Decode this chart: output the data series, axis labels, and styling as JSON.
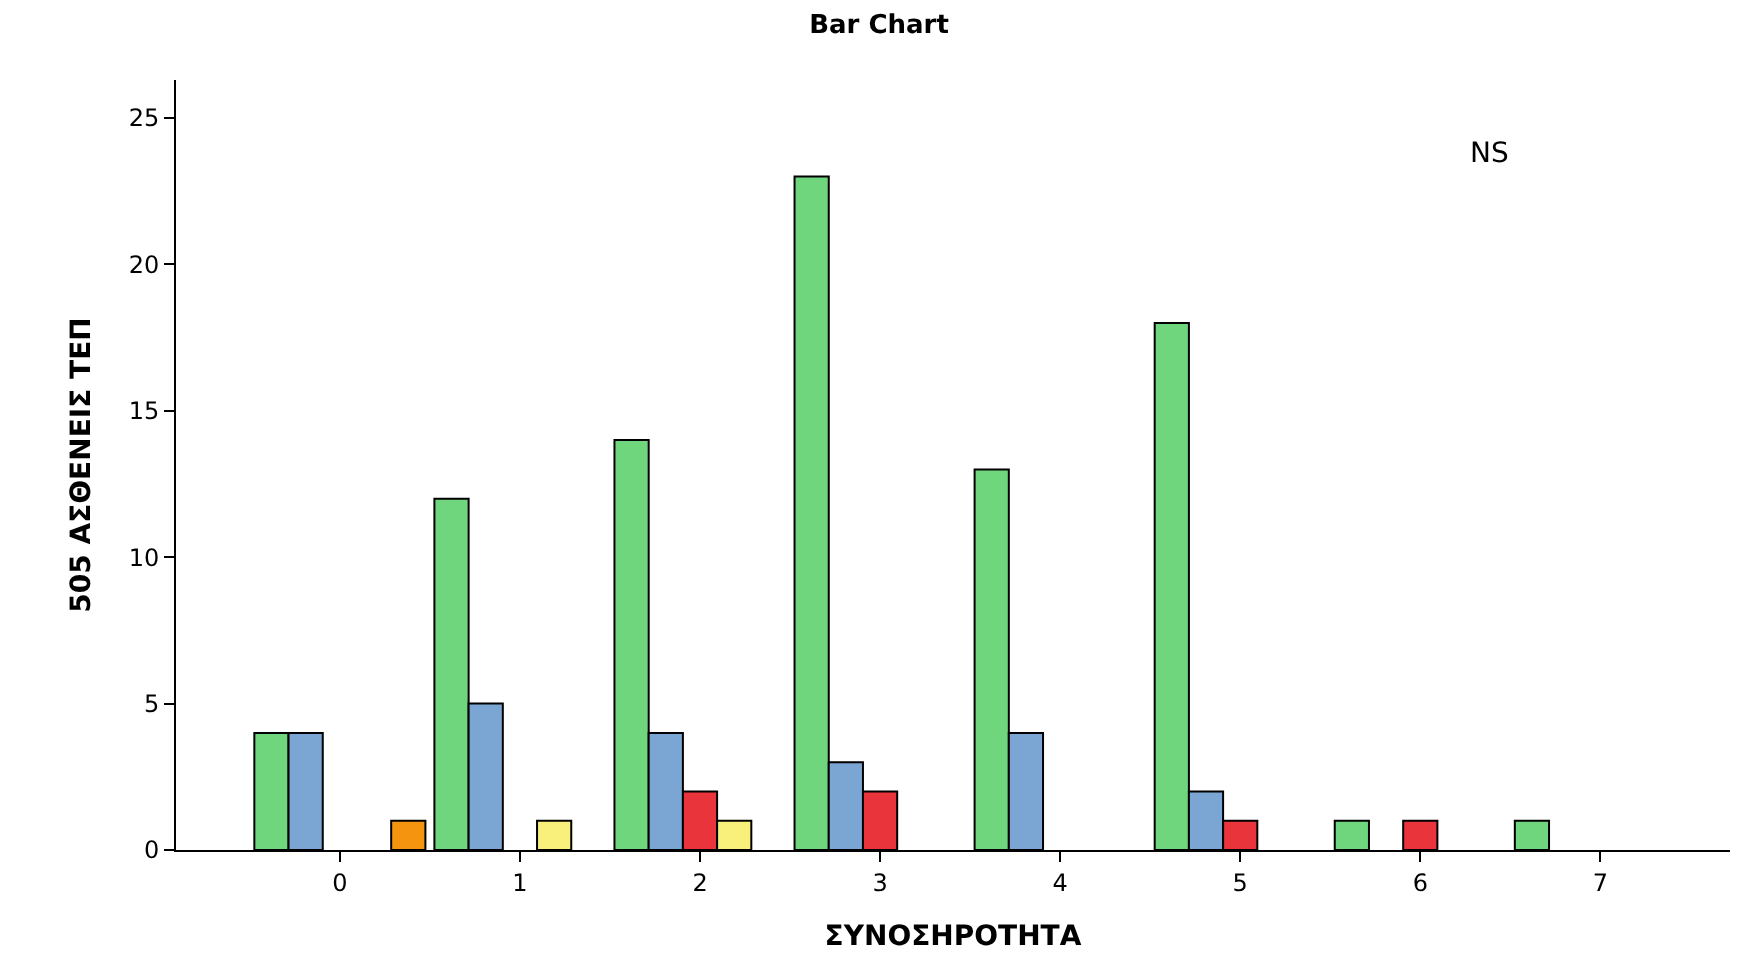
{
  "chart_data": {
    "type": "bar",
    "title": "Bar Chart",
    "xlabel": "ΣΥΝΟΣΗΡΟΤΗΤΑ",
    "ylabel": "505 ΑΣΘΕΝΕΙΣ ΤΕΠ",
    "categories": [
      "0",
      "1",
      "2",
      "3",
      "4",
      "5",
      "6",
      "7"
    ],
    "series": [
      {
        "color": "#70d67e",
        "values": [
          4,
          12,
          14,
          23,
          13,
          18,
          1,
          1
        ]
      },
      {
        "color": "#7ba6d4",
        "values": [
          4,
          5,
          4,
          3,
          4,
          2,
          null,
          null
        ]
      },
      {
        "color": "#e8343a",
        "values": [
          null,
          null,
          2,
          2,
          null,
          1,
          1,
          null
        ]
      },
      {
        "color": "#f8f07a",
        "values": [
          null,
          1,
          1,
          null,
          null,
          null,
          null,
          null
        ]
      },
      {
        "color": "#f5950f",
        "values": [
          1,
          null,
          null,
          null,
          null,
          null,
          null,
          null
        ]
      }
    ],
    "ylim": [
      0,
      26.3
    ],
    "yticks": [
      0,
      5,
      10,
      15,
      20,
      25
    ],
    "annotations": [
      "NS"
    ]
  }
}
